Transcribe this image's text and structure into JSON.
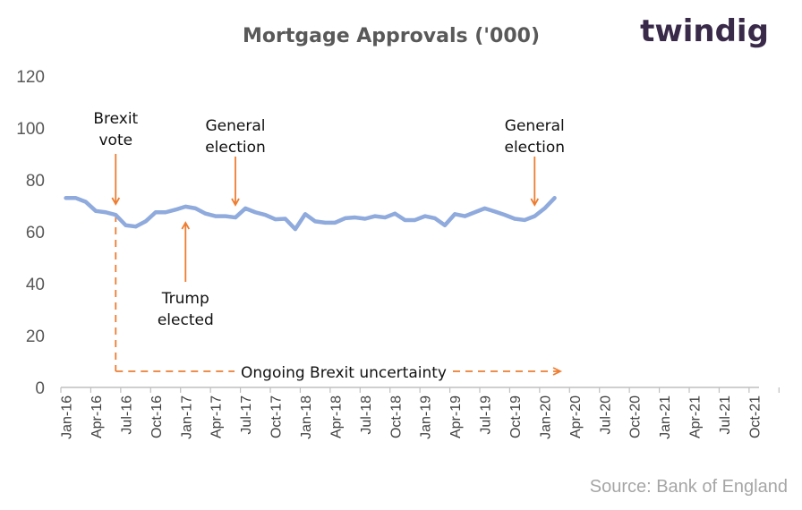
{
  "brand": {
    "logo_text": "twindig"
  },
  "source": "Source: Bank of England",
  "colors": {
    "series": "#8faadc",
    "annotation": "#ed7d31",
    "axis": "#bfbfbf",
    "text": "#595959"
  },
  "chart_data": {
    "type": "line",
    "title": "Mortgage Approvals ('000)",
    "xlabel": "",
    "ylabel": "",
    "ylim": [
      0,
      120
    ],
    "yticks": [
      0,
      20,
      40,
      60,
      80,
      100,
      120
    ],
    "grid": false,
    "x_tick_labels": [
      "Jan-16",
      "Apr-16",
      "Jul-16",
      "Oct-16",
      "Jan-17",
      "Apr-17",
      "Jul-17",
      "Oct-17",
      "Jan-18",
      "Apr-18",
      "Jul-18",
      "Oct-18",
      "Jan-19",
      "Apr-19",
      "Jul-19",
      "Oct-19",
      "Jan-20",
      "Apr-20",
      "Jul-20",
      "Oct-20",
      "Jan-21",
      "Apr-21",
      "Jul-21",
      "Oct-21"
    ],
    "series": [
      {
        "values": [
          73.0,
          73.0,
          71.5,
          68.0,
          67.5,
          66.5,
          62.5,
          62.0,
          64.0,
          67.5,
          67.5,
          68.5,
          69.7,
          69.0,
          67.0,
          66.0,
          66.0,
          65.5,
          69.0,
          67.5,
          66.5,
          64.8,
          65.0,
          61.0,
          66.8,
          64.0,
          63.5,
          63.5,
          65.2,
          65.5,
          65.0,
          66.0,
          65.5,
          67.0,
          64.5,
          64.5,
          66.0,
          65.2,
          62.5,
          66.8,
          66.0,
          67.5,
          69.0,
          67.8,
          66.5,
          65.0,
          64.5,
          66.0,
          69.0,
          73.0
        ]
      }
    ],
    "annotations": [
      {
        "text_lines": [
          "Brexit",
          "vote"
        ],
        "month_index": 5
      },
      {
        "text_lines": [
          "General",
          "election"
        ],
        "month_index": 17
      },
      {
        "text_lines": [
          "Trump",
          "elected"
        ],
        "month_index": 12
      },
      {
        "text_lines": [
          "General",
          "election"
        ],
        "month_index": 47
      },
      {
        "text": "Ongoing Brexit uncertainty",
        "from_month_index": 5
      }
    ]
  }
}
